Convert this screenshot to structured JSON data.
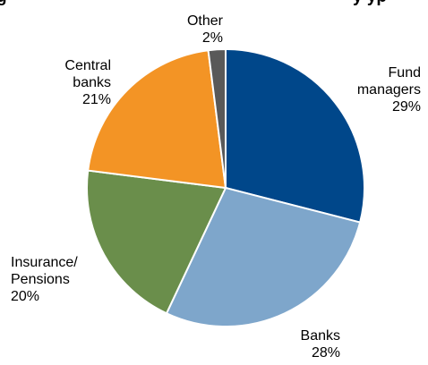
{
  "chart_data": {
    "type": "pie",
    "title": "g",
    "title_suffix": "y yp",
    "categories": [
      "Fund managers",
      "Banks",
      "Insurance/ Pensions",
      "Central banks",
      "Other"
    ],
    "values": [
      29,
      28,
      20,
      21,
      2
    ],
    "value_labels": [
      "29%",
      "28%",
      "20%",
      "21%",
      "2%"
    ],
    "label_lines": [
      [
        "Fund",
        "managers",
        "29%"
      ],
      [
        "Banks",
        "28%"
      ],
      [
        "Insurance/",
        "Pensions",
        "20%"
      ],
      [
        "Central",
        "banks",
        "21%"
      ],
      [
        "Other",
        "2%"
      ]
    ],
    "colors": [
      "#00478a",
      "#7ea6cb",
      "#6a8e4b",
      "#f39425",
      "#595959"
    ],
    "legend": "none",
    "start_angle_deg": 0,
    "direction": "clockwise"
  }
}
